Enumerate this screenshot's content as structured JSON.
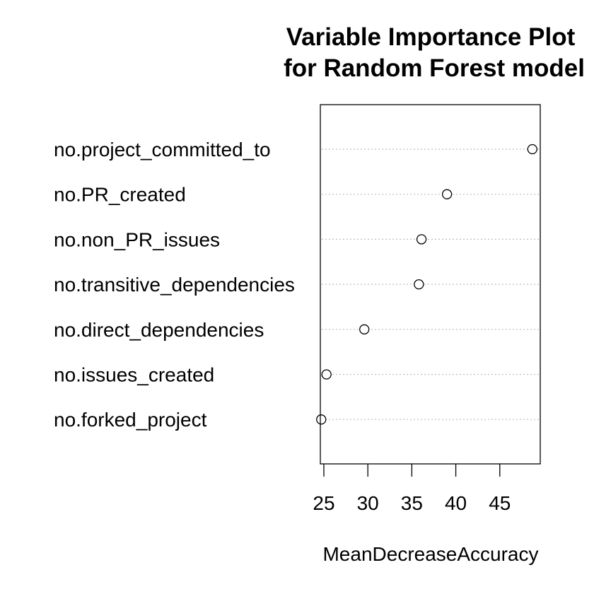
{
  "chart_data": {
    "type": "scatter",
    "title": [
      "Variable Importance Plot",
      "for Random Forest model"
    ],
    "xlabel": "MeanDecreaseAccuracy",
    "ylabel": "",
    "xlim": [
      24.6,
      49.6
    ],
    "xticks": [
      25,
      30,
      35,
      40,
      45
    ],
    "grid": false,
    "categories": [
      "no.project_committed_to",
      "no.PR_created",
      "no.non_PR_issues",
      "no.transitive_dependencies",
      "no.direct_dependencies",
      "no.issues_created",
      "no.forked_project"
    ],
    "values": [
      48.7,
      39.0,
      36.1,
      35.8,
      29.6,
      25.3,
      24.7
    ]
  }
}
